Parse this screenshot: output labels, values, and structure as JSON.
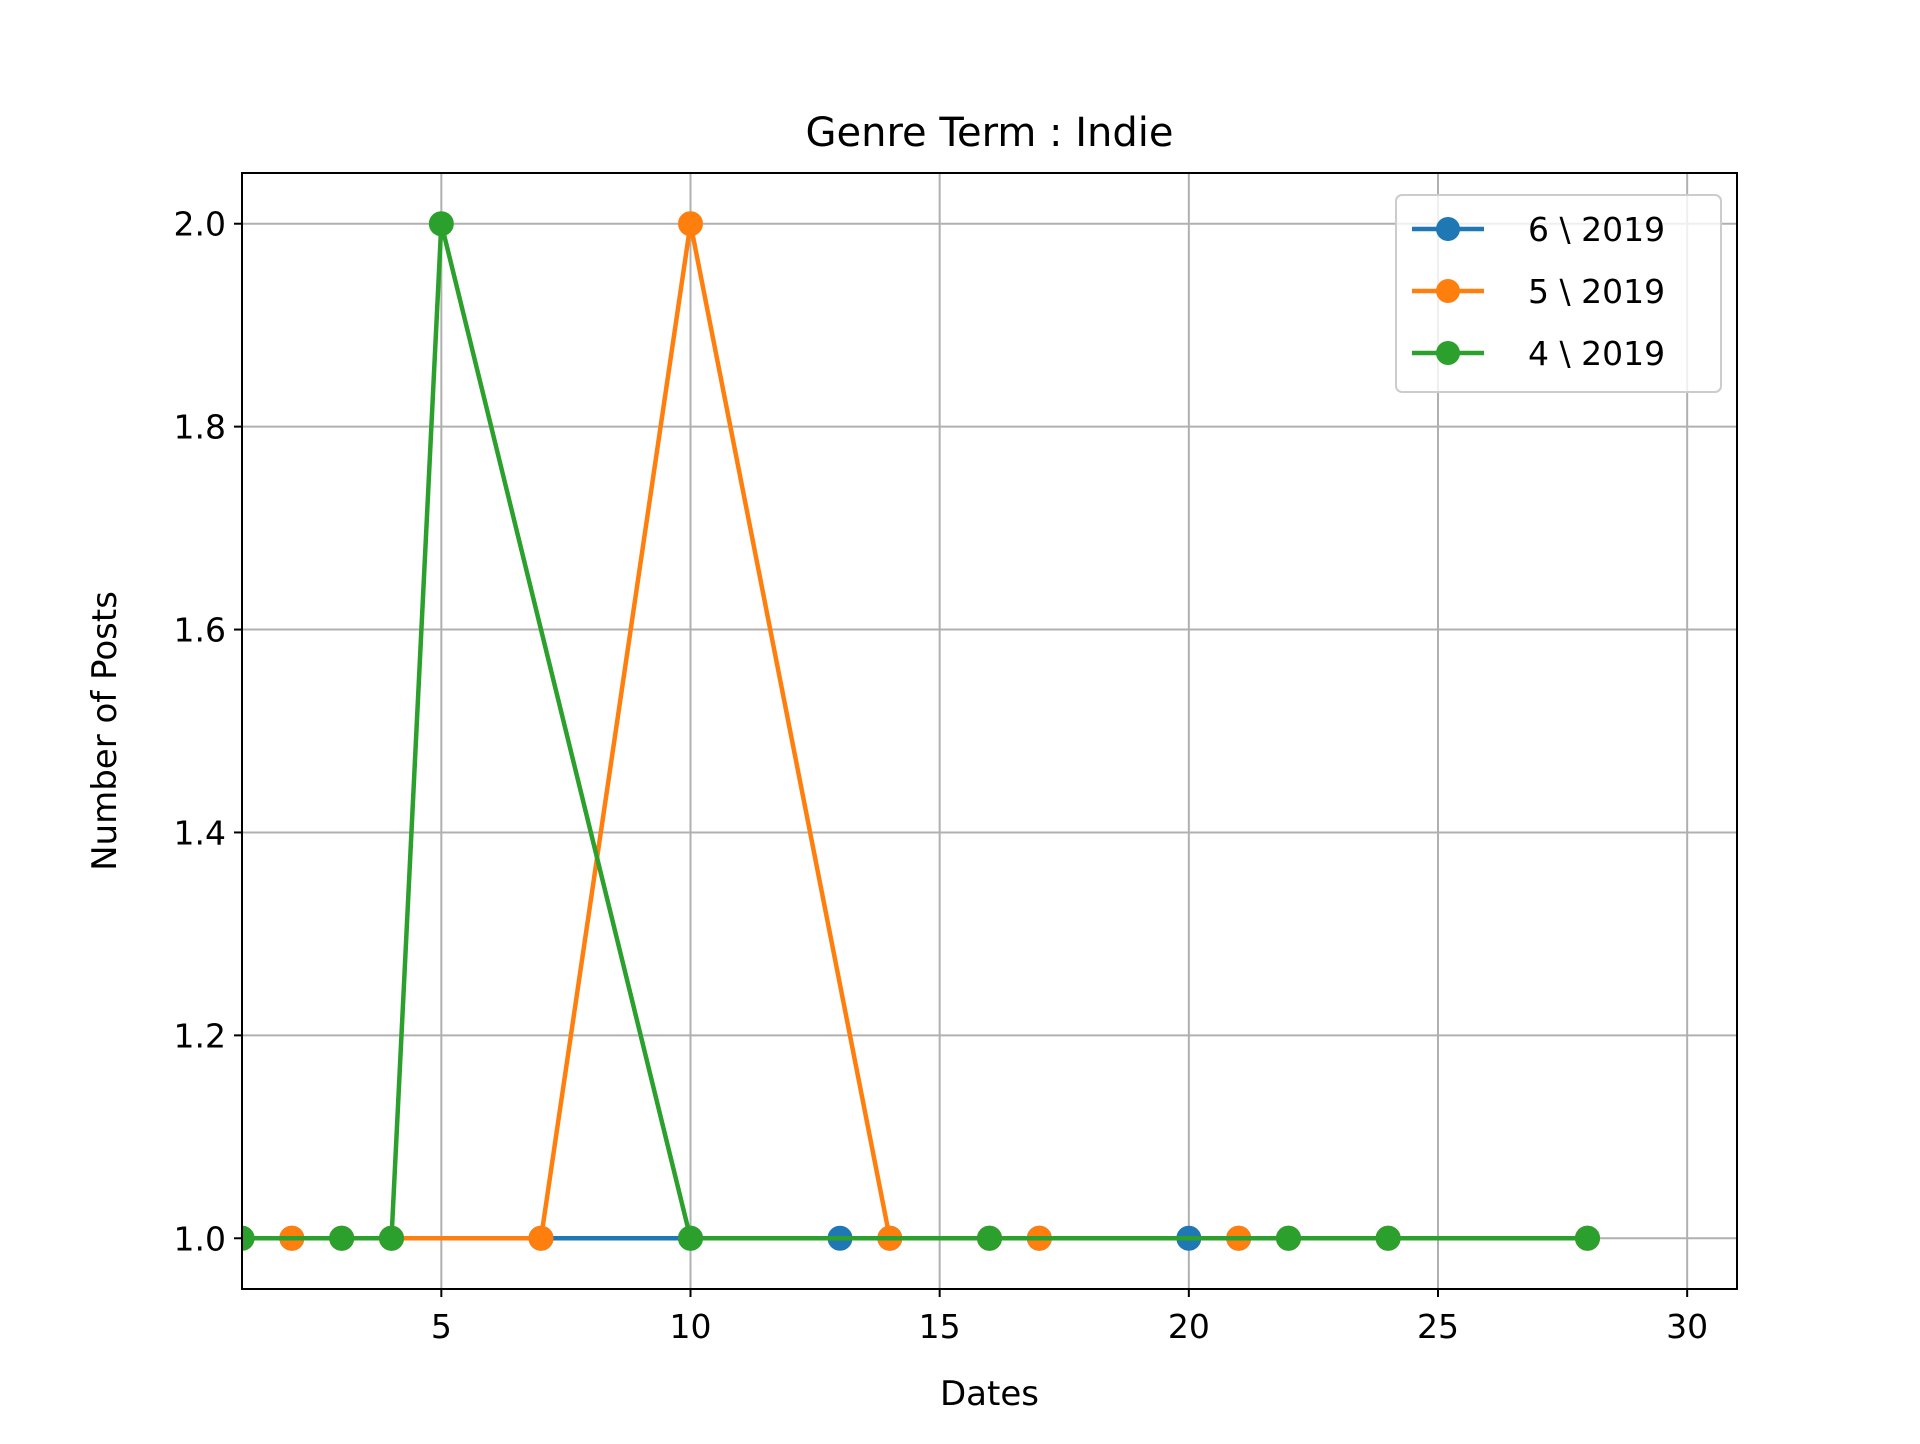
{
  "chart_data": {
    "type": "line",
    "title": "Genre Term : Indie",
    "xlabel": "Dates",
    "ylabel": "Number of Posts",
    "xlim": [
      1,
      31
    ],
    "ylim": [
      0.95,
      2.05
    ],
    "xticks": [
      5,
      10,
      15,
      20,
      25,
      30
    ],
    "xtick_labels": [
      "5",
      "10",
      "15",
      "20",
      "25",
      "30"
    ],
    "yticks": [
      1.0,
      1.2,
      1.4,
      1.6,
      1.8,
      2.0
    ],
    "ytick_labels": [
      "1.0",
      "1.2",
      "1.4",
      "1.6",
      "1.8",
      "2.0"
    ],
    "grid": true,
    "legend_position": "top-right",
    "marker": "circle",
    "series": [
      {
        "name": "6 \\ 2019",
        "color": "#1f77b4",
        "x": [
          1,
          2,
          3,
          4,
          7,
          10,
          13,
          14,
          16,
          17,
          20,
          21,
          22,
          24,
          28
        ],
        "y": [
          1,
          1,
          1,
          1,
          1,
          1,
          1,
          1,
          1,
          1,
          1,
          1,
          1,
          1,
          1
        ]
      },
      {
        "name": "5 \\ 2019",
        "color": "#ff7f0e",
        "x": [
          1,
          2,
          3,
          4,
          7,
          10,
          14,
          16,
          17,
          21,
          22,
          24,
          28
        ],
        "y": [
          1,
          1,
          1,
          1,
          1,
          2,
          1,
          1,
          1,
          1,
          1,
          1,
          1
        ]
      },
      {
        "name": "4 \\ 2019",
        "color": "#2ca02c",
        "x": [
          1,
          3,
          4,
          5,
          10,
          16,
          22,
          24,
          28
        ],
        "y": [
          1,
          1,
          1,
          2,
          1,
          1,
          1,
          1,
          1
        ]
      }
    ]
  }
}
